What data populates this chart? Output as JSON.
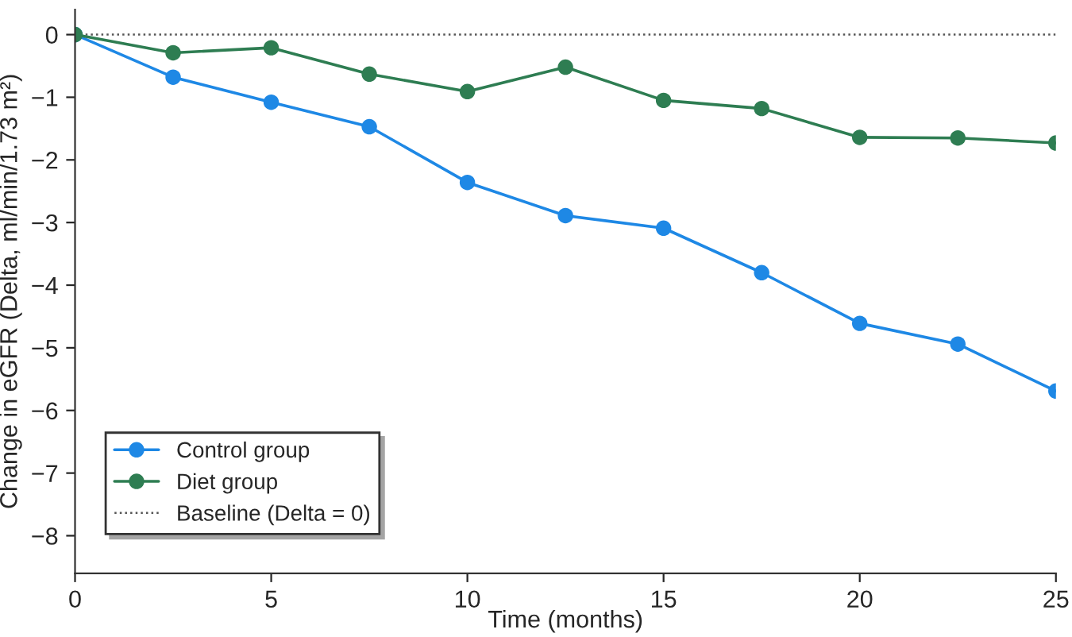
{
  "chart_data": {
    "type": "line",
    "xlabel": "Time (months)",
    "ylabel": "Change in eGFR (Delta, ml/min/1.73 m²)",
    "x": [
      0,
      2.5,
      5,
      7.5,
      10,
      12.5,
      15,
      17.5,
      20,
      22.5,
      25
    ],
    "series": [
      {
        "name": "Control group",
        "color": "#1e88e5",
        "values": [
          0,
          -0.68,
          -1.08,
          -1.47,
          -2.36,
          -2.89,
          -3.09,
          -3.8,
          -4.61,
          -4.94,
          -5.69
        ]
      },
      {
        "name": "Diet group",
        "color": "#2e7d52",
        "values": [
          0,
          -0.29,
          -0.21,
          -0.63,
          -0.91,
          -0.52,
          -1.05,
          -1.18,
          -1.64,
          -1.65,
          -1.73
        ]
      }
    ],
    "ref_lines": [
      {
        "axis": "y",
        "value": 0,
        "label": "Baseline (Delta = 0)",
        "color": "#555555",
        "line_style": "dotted"
      }
    ],
    "xlim": [
      0,
      25
    ],
    "xticks": [
      0,
      5,
      10,
      15,
      20,
      25
    ],
    "ylim": [
      -8.6,
      0.4
    ],
    "yticks": [
      -8,
      -7,
      -6,
      -5,
      -4,
      -3,
      -2,
      -1,
      0
    ],
    "marker": "circle",
    "line_style": "solid",
    "grid": false,
    "legend": "bottom left"
  }
}
